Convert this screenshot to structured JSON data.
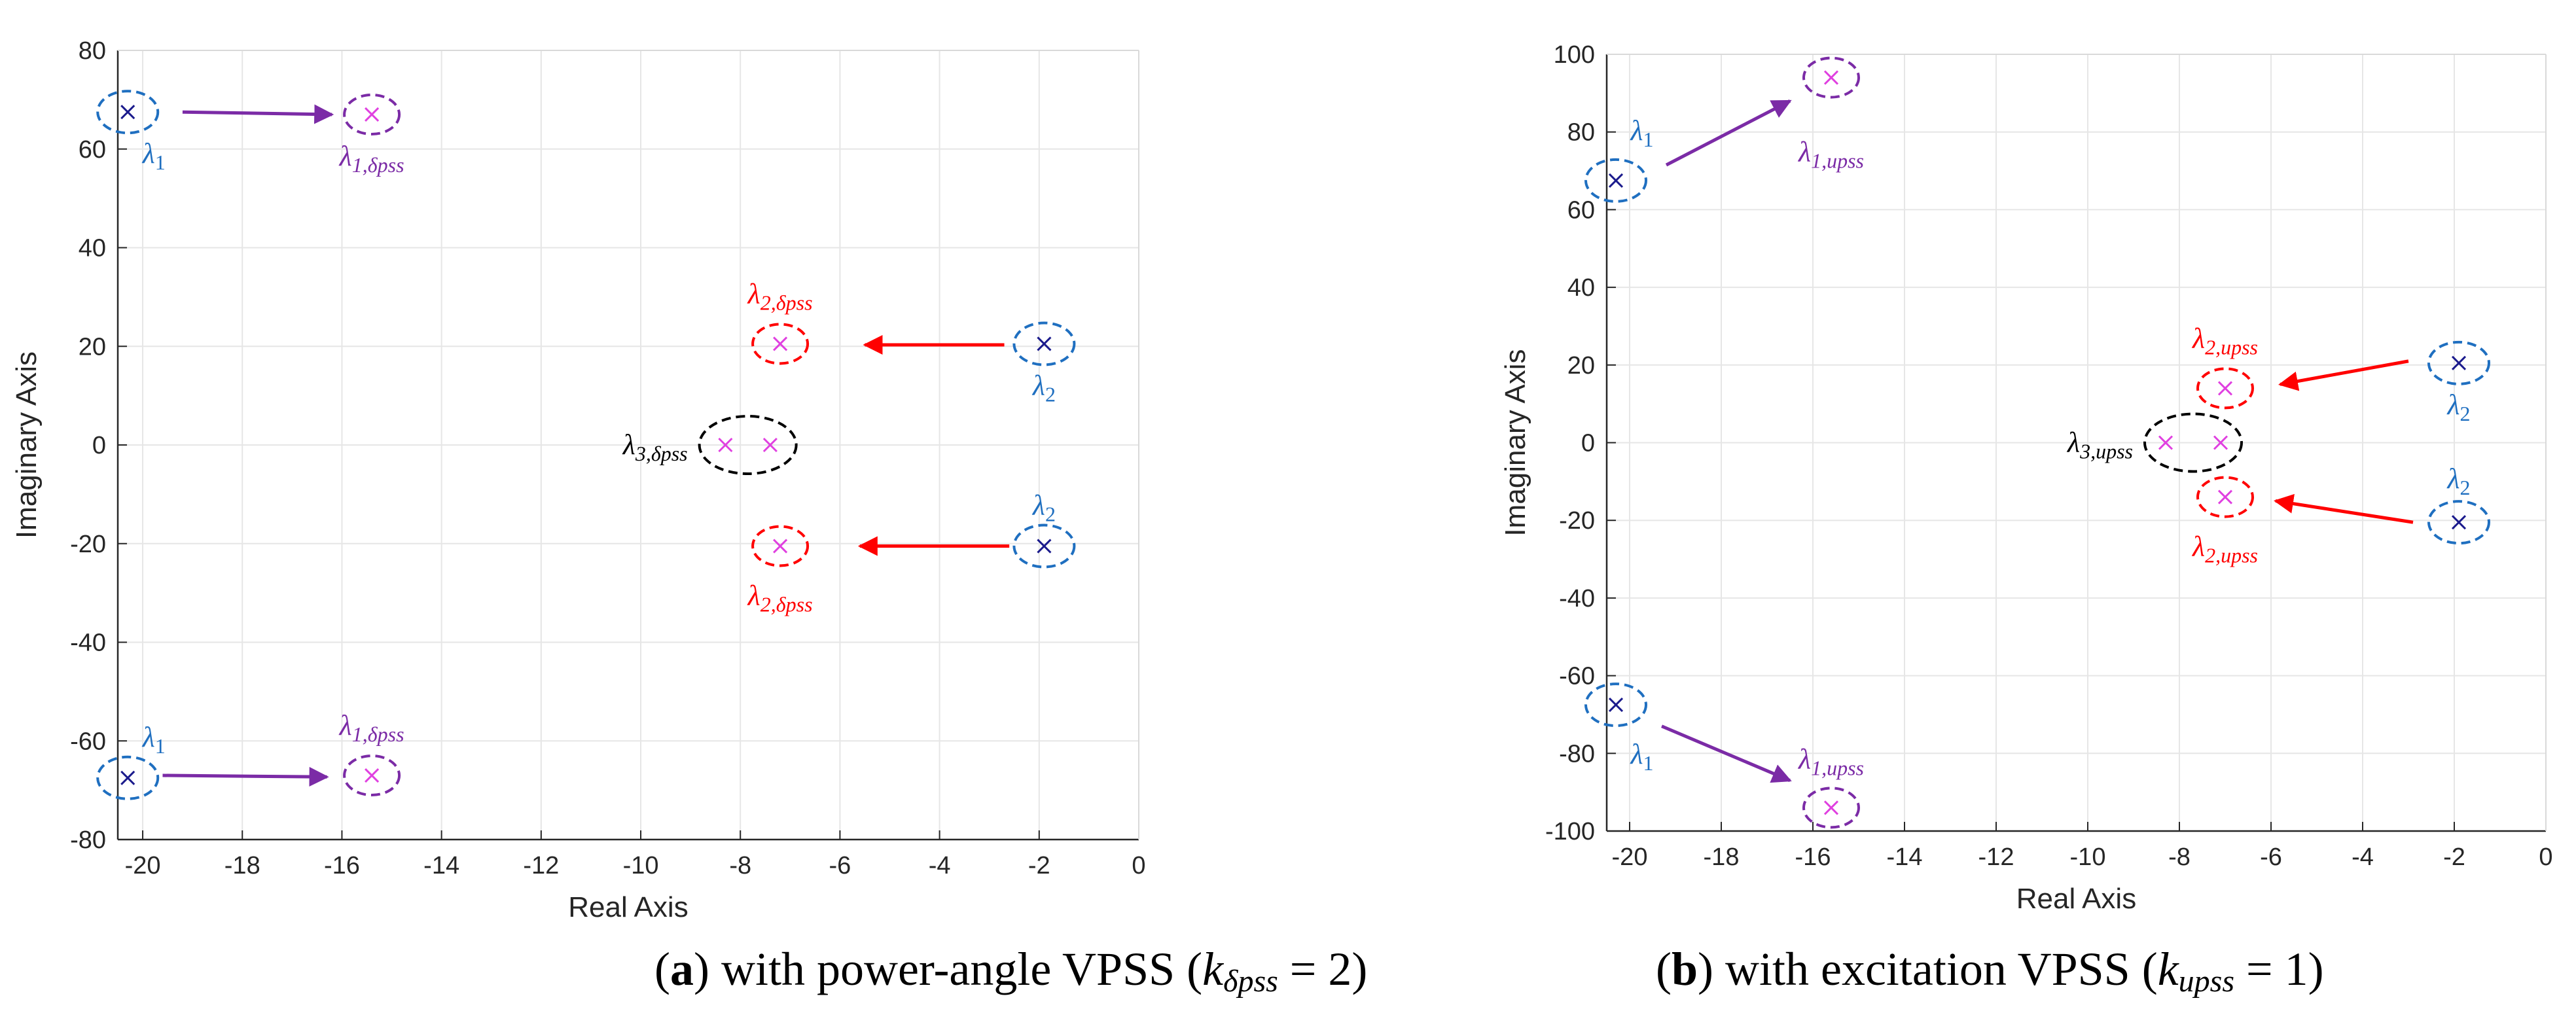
{
  "chart_data": [
    {
      "type": "scatter",
      "panel": "a",
      "xlabel": "Real Axis",
      "ylabel": "Imaginary Axis",
      "xlim": [
        -20.5,
        0
      ],
      "ylim": [
        -80,
        80
      ],
      "xticks": [
        -20,
        -18,
        -16,
        -14,
        -12,
        -10,
        -8,
        -6,
        -4,
        -2,
        0
      ],
      "yticks": [
        -80,
        -60,
        -40,
        -20,
        0,
        20,
        40,
        60,
        80
      ],
      "grid": true,
      "poles_original": [
        {
          "x": -20.3,
          "y": 67.5,
          "label": "λ1"
        },
        {
          "x": -20.3,
          "y": -67.5,
          "label": "λ1"
        },
        {
          "x": -1.9,
          "y": 20.5,
          "label": "λ2"
        },
        {
          "x": -1.9,
          "y": -20.5,
          "label": "λ2"
        }
      ],
      "poles_new": [
        {
          "x": -15.4,
          "y": 67,
          "label": "λ1,δpss"
        },
        {
          "x": -15.4,
          "y": -67,
          "label": "λ1,δpss"
        },
        {
          "x": -7.2,
          "y": 20.5,
          "label": "λ2,δpss"
        },
        {
          "x": -7.2,
          "y": -20.5,
          "label": "λ2,δpss"
        },
        {
          "x": -8.3,
          "y": 0,
          "label": "λ3,δpss"
        },
        {
          "x": -7.4,
          "y": 0,
          "label": ""
        }
      ],
      "arrows": [
        {
          "from": [
            -19.2,
            67.5
          ],
          "to": [
            -16.2,
            67
          ],
          "color": "#7b2ba6"
        },
        {
          "from": [
            -19.6,
            -67
          ],
          "to": [
            -16.3,
            -67.3
          ],
          "color": "#7b2ba6"
        },
        {
          "from": [
            -2.7,
            20.3
          ],
          "to": [
            -5.5,
            20.3
          ],
          "color": "#ff0000"
        },
        {
          "from": [
            -2.6,
            -20.5
          ],
          "to": [
            -5.6,
            -20.5
          ],
          "color": "#ff0000"
        }
      ],
      "caption": {
        "prefix": "(",
        "letter": "a",
        "text": ") with power-angle VPSS (",
        "var": "k",
        "sub": "δpss",
        "value": " = 2)"
      }
    },
    {
      "type": "scatter",
      "panel": "b",
      "xlabel": "Real Axis",
      "ylabel": "Imaginary Axis",
      "xlim": [
        -20.5,
        0
      ],
      "ylim": [
        -100,
        100
      ],
      "xticks": [
        -20,
        -18,
        -16,
        -14,
        -12,
        -10,
        -8,
        -6,
        -4,
        -2,
        0
      ],
      "yticks": [
        -100,
        -80,
        -60,
        -40,
        -20,
        0,
        20,
        40,
        60,
        80,
        100
      ],
      "grid": true,
      "poles_original": [
        {
          "x": -20.3,
          "y": 67.5,
          "label": "λ1"
        },
        {
          "x": -20.3,
          "y": -67.5,
          "label": "λ1"
        },
        {
          "x": -1.9,
          "y": 20.5,
          "label": "λ2"
        },
        {
          "x": -1.9,
          "y": -20.5,
          "label": "λ2"
        }
      ],
      "poles_new": [
        {
          "x": -15.6,
          "y": 94,
          "label": "λ1,upss"
        },
        {
          "x": -15.6,
          "y": -94,
          "label": "λ1,upss"
        },
        {
          "x": -7.0,
          "y": 14,
          "label": "λ2,upss"
        },
        {
          "x": -7.0,
          "y": -14,
          "label": "λ2,upss"
        },
        {
          "x": -8.3,
          "y": 0,
          "label": "λ3,upss"
        },
        {
          "x": -7.1,
          "y": 0,
          "label": ""
        }
      ],
      "arrows": [
        {
          "from": [
            -19.2,
            71.5
          ],
          "to": [
            -16.5,
            88
          ],
          "color": "#7b2ba6"
        },
        {
          "from": [
            -19.3,
            -73
          ],
          "to": [
            -16.5,
            -87
          ],
          "color": "#7b2ba6"
        },
        {
          "from": [
            -3.0,
            21
          ],
          "to": [
            -5.8,
            15
          ],
          "color": "#ff0000"
        },
        {
          "from": [
            -2.9,
            -20.5
          ],
          "to": [
            -5.9,
            -15
          ],
          "color": "#ff0000"
        }
      ],
      "caption": {
        "prefix": "(",
        "letter": "b",
        "text": ") with excitation VPSS (",
        "var": "k",
        "sub": "upss",
        "value": " = 1)"
      }
    }
  ]
}
